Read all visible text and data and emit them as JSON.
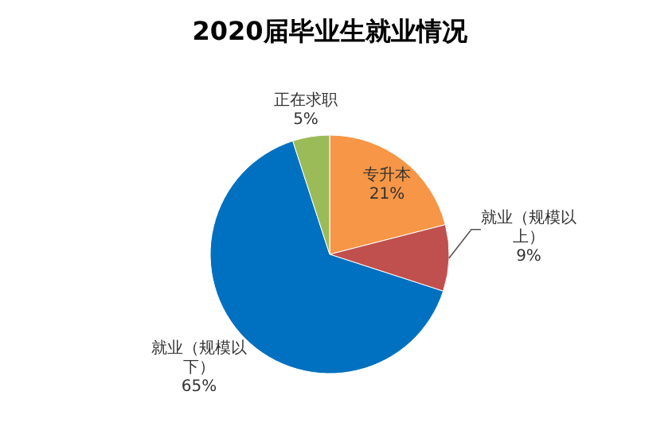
{
  "chart_data": {
    "type": "pie",
    "title": "2020届毕业生就业情况",
    "categories": [
      "专升本",
      "就业（规模以上）",
      "就业（规模以下）",
      "正在求职"
    ],
    "values": [
      21,
      9,
      65,
      5
    ],
    "colors": [
      "#f79646",
      "#c0504d",
      "#0070c0",
      "#9bbb59"
    ],
    "value_labels": [
      "21%",
      "9%",
      "65%",
      "5%"
    ],
    "legend": false
  }
}
